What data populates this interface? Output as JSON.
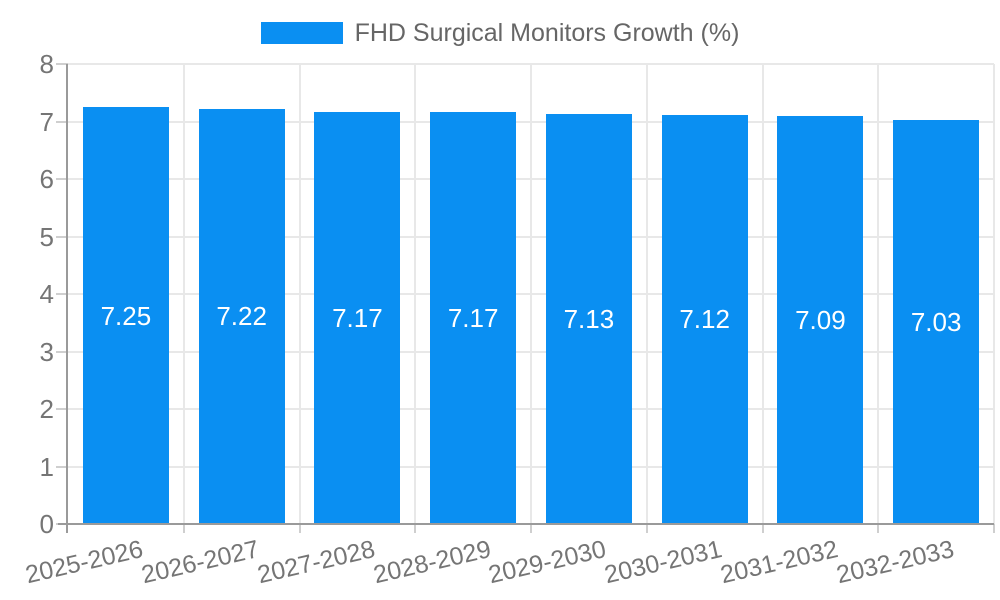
{
  "legend": {
    "label": "FHD Surgical Monitors Growth (%)"
  },
  "chart_data": {
    "type": "bar",
    "title": "FHD Surgical Monitors Growth (%)",
    "series_name": "FHD Surgical Monitors Growth (%)",
    "categories": [
      "2025-2026",
      "2026-2027",
      "2027-2028",
      "2028-2029",
      "2029-2030",
      "2030-2031",
      "2031-2032",
      "2032-2033"
    ],
    "values": [
      7.25,
      7.22,
      7.17,
      7.17,
      7.13,
      7.12,
      7.09,
      7.03
    ],
    "value_labels": [
      "7.25",
      "7.22",
      "7.17",
      "7.17",
      "7.13",
      "7.12",
      "7.09",
      "7.03"
    ],
    "xlabel": "",
    "ylabel": "",
    "ylim": [
      0,
      8
    ],
    "yticks": [
      0,
      1,
      2,
      3,
      4,
      5,
      6,
      7,
      8
    ],
    "grid": true,
    "legend_position": "top-center"
  },
  "colors": {
    "bar": "#0a8ff2",
    "grid": "#e8e8e8",
    "axis": "#9a9a9a",
    "tick": "#cfcfcf",
    "tick_label_text": "#757575",
    "legend_text": "#666666",
    "value_label_text": "#ffffff",
    "background": "#ffffff"
  }
}
